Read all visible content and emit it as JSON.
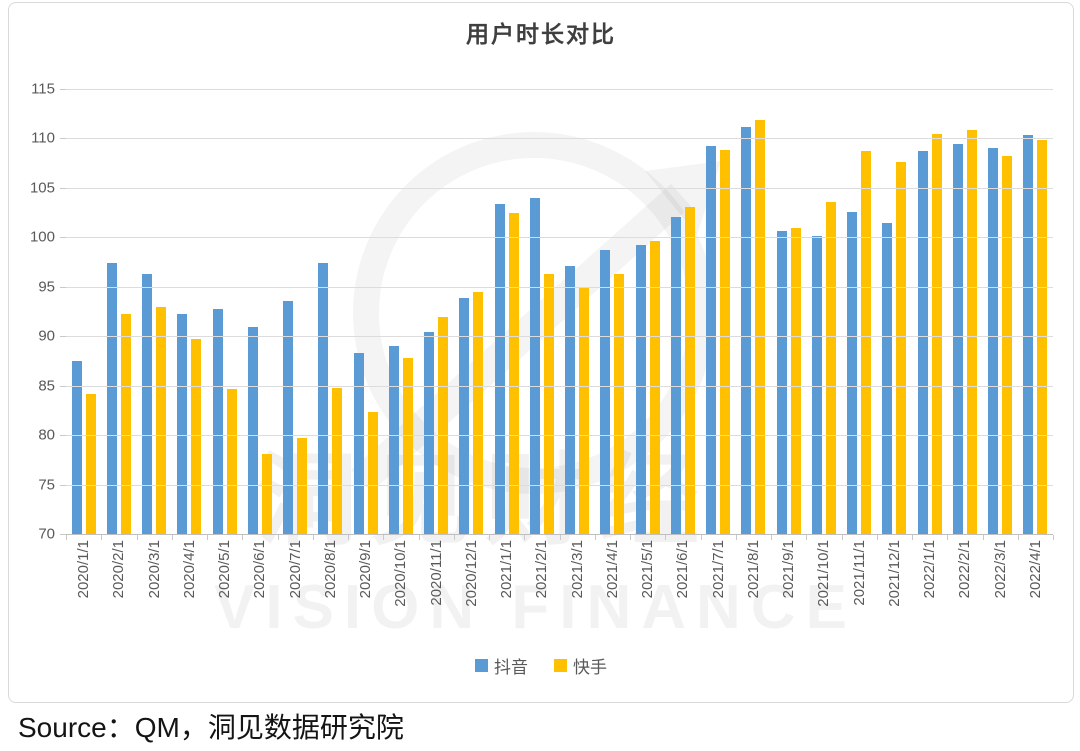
{
  "chart": {
    "title": "用户时长对比",
    "y_tick_labels": [
      "115",
      "110",
      "105",
      "100",
      "95",
      "90",
      "85",
      "80",
      "75",
      "70"
    ]
  },
  "chart_data": {
    "type": "bar",
    "title": "用户时长对比",
    "categories": [
      "2020/1/1",
      "2020/2/1",
      "2020/3/1",
      "2020/4/1",
      "2020/5/1",
      "2020/6/1",
      "2020/7/1",
      "2020/8/1",
      "2020/9/1",
      "2020/10/1",
      "2020/11/1",
      "2020/12/1",
      "2021/1/1",
      "2021/2/1",
      "2021/3/1",
      "2021/4/1",
      "2021/5/1",
      "2021/6/1",
      "2021/7/1",
      "2021/8/1",
      "2021/9/1",
      "2021/10/1",
      "2021/11/1",
      "2021/12/1",
      "2022/1/1",
      "2022/2/1",
      "2022/3/1",
      "2022/4/1"
    ],
    "series": [
      {
        "name": "抖音",
        "color": "#5B9BD5",
        "values": [
          87.5,
          97.4,
          96.3,
          92.2,
          92.8,
          90.9,
          93.6,
          97.4,
          88.3,
          89.0,
          90.4,
          93.9,
          103.4,
          104.0,
          97.1,
          98.7,
          99.2,
          102.1,
          109.2,
          111.2,
          100.6,
          100.1,
          102.6,
          101.5,
          108.7,
          109.4,
          109.0,
          110.4
        ]
      },
      {
        "name": "快手",
        "color": "#FFC000",
        "values": [
          84.2,
          92.2,
          93.0,
          89.7,
          84.7,
          78.1,
          79.7,
          84.8,
          82.3,
          87.8,
          91.9,
          94.5,
          102.5,
          96.3,
          95.0,
          96.3,
          99.6,
          103.1,
          108.8,
          111.9,
          100.9,
          103.6,
          108.7,
          107.6,
          110.5,
          110.9,
          108.2,
          109.8
        ]
      }
    ],
    "ylim": [
      70,
      115
    ],
    "y_step": 5,
    "grid": true,
    "legend_position": "bottom"
  },
  "watermark": {
    "cn": "洞见财经",
    "en": "VISION FINANCE"
  },
  "source": {
    "text": "Source：QM，洞见数据研究院"
  },
  "colors": {
    "douyin": "#5B9BD5",
    "kuaishou": "#FFC000",
    "grid": "#DCDCDC",
    "axis": "#BFBFBF",
    "tick_label": "#595959",
    "title": "#3F3F3F",
    "frame_border": "#D9D9D9"
  }
}
